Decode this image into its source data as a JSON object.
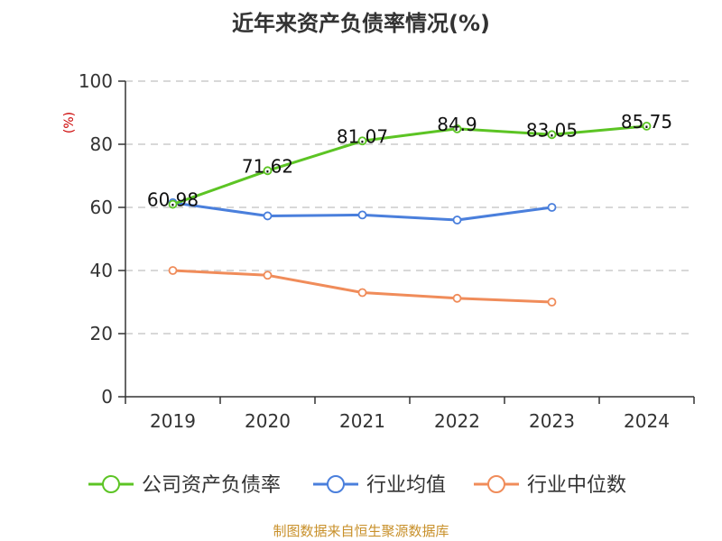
{
  "chart_data": {
    "type": "line",
    "title": "近年来资产负债率情况(%)",
    "ylabel": "(%)",
    "xlabel": "",
    "categories": [
      "2019",
      "2020",
      "2021",
      "2022",
      "2023",
      "2024"
    ],
    "ylim": [
      0,
      100
    ],
    "yticks": [
      0,
      20,
      40,
      60,
      80,
      100
    ],
    "grid": true,
    "legend_position": "bottom",
    "series": [
      {
        "name": "公司资产负债率",
        "color": "#5cc424",
        "values": [
          60.98,
          71.62,
          81.07,
          84.9,
          83.05,
          85.75
        ],
        "labels": [
          "60.98",
          "71.62",
          "81.07",
          "84.9",
          "83.05",
          "85.75"
        ]
      },
      {
        "name": "行业均值",
        "color": "#4a7fdc",
        "values": [
          61.5,
          57.3,
          57.6,
          56.0,
          60.0,
          null
        ]
      },
      {
        "name": "行业中位数",
        "color": "#f08c5a",
        "values": [
          40.0,
          38.5,
          33.0,
          31.2,
          30.0,
          null
        ]
      }
    ]
  },
  "footer": "制图数据来自恒生聚源数据库"
}
